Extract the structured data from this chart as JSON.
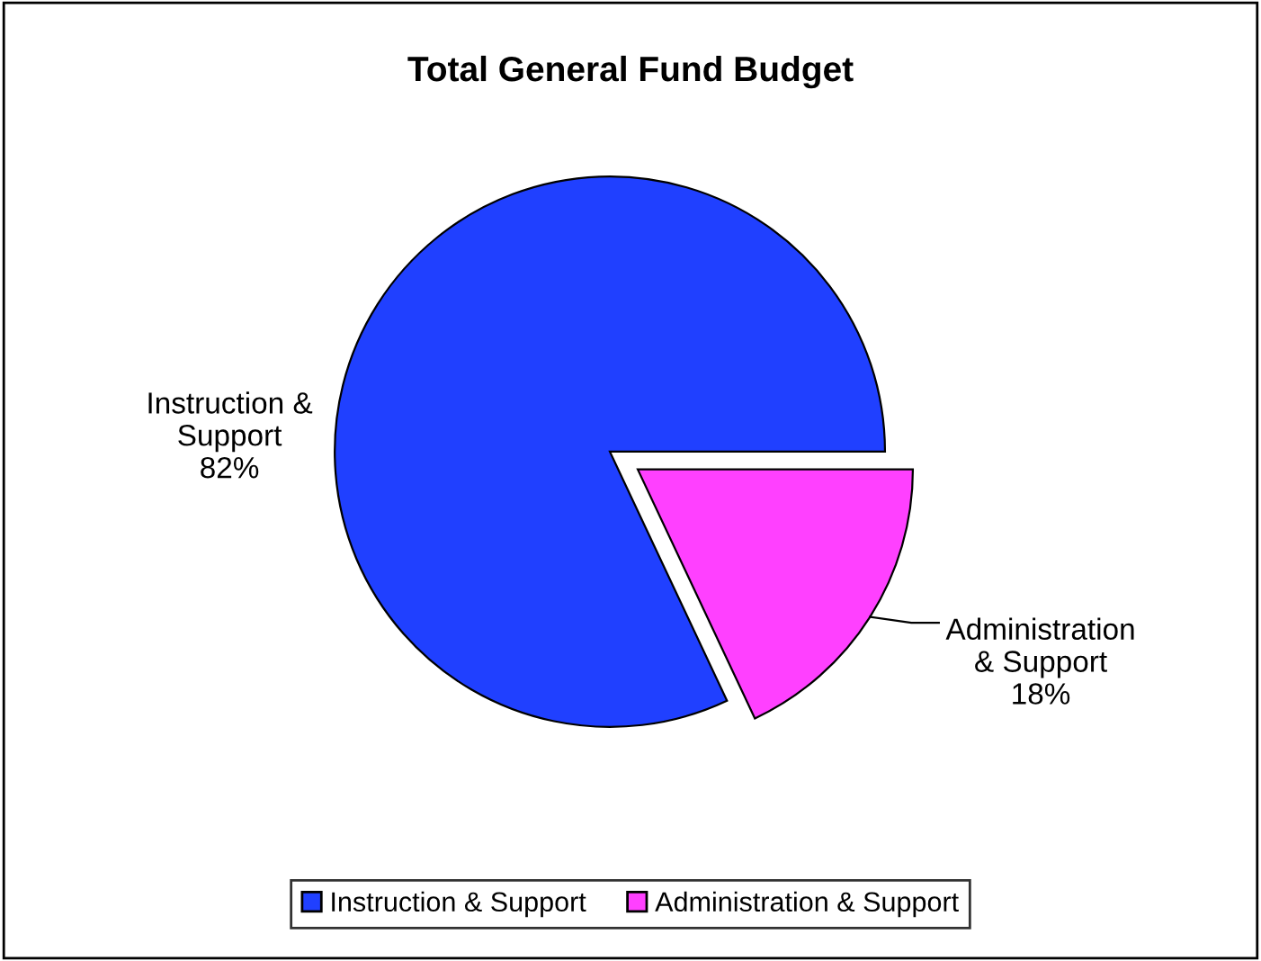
{
  "chart_data": {
    "type": "pie",
    "title": "Total General Fund Budget",
    "categories": [
      "Instruction & Support",
      "Administration & Support"
    ],
    "values": [
      82,
      18
    ],
    "value_labels": [
      "82%",
      "18%"
    ],
    "colors": [
      "#2040ff",
      "#ff40ff"
    ],
    "legend": "bottom"
  }
}
